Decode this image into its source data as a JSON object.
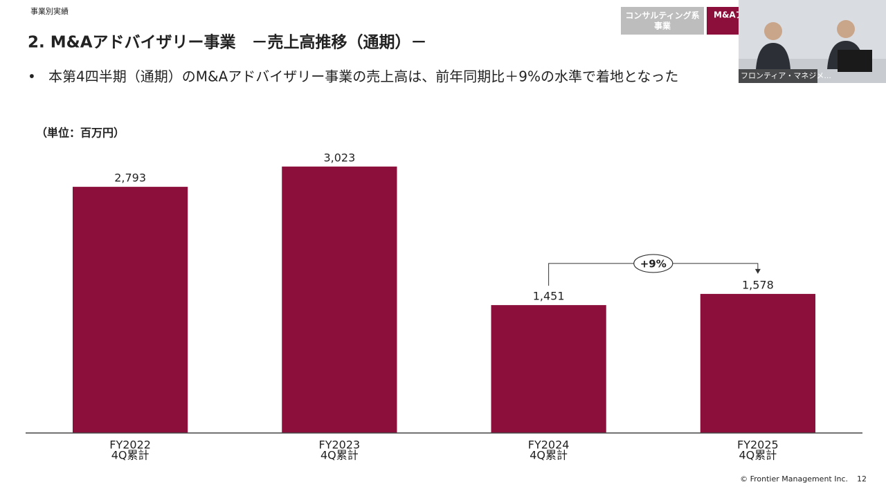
{
  "header": {
    "section": "事業別実績",
    "title": "2. M&Aアドバイザリー事業　－売上高推移（通期）－",
    "bullet": "本第4四半期（通期）のM&Aアドバイザリー事業の売上高は、前年同期比＋9%の水準で着地となった",
    "tabs": [
      "コンサルティング系\n事業",
      "M&Aア"
    ]
  },
  "video": {
    "label": "フロンティア・マネジメ..."
  },
  "footer": {
    "copyright": "© Frontier Management Inc.",
    "page": "12"
  },
  "chart_data": {
    "type": "bar",
    "unit_label": "（単位：百万円）",
    "categories": [
      "FY2022\n4Q累計",
      "FY2023\n4Q累計",
      "FY2024\n4Q累計",
      "FY2025\n4Q累計"
    ],
    "values": [
      2793,
      3023,
      1451,
      1578
    ],
    "value_labels": [
      "2,793",
      "3,023",
      "1,451",
      "1,578"
    ],
    "color": "#8b0f3a",
    "ylim": [
      0,
      3500
    ],
    "annotation": "+9%"
  }
}
